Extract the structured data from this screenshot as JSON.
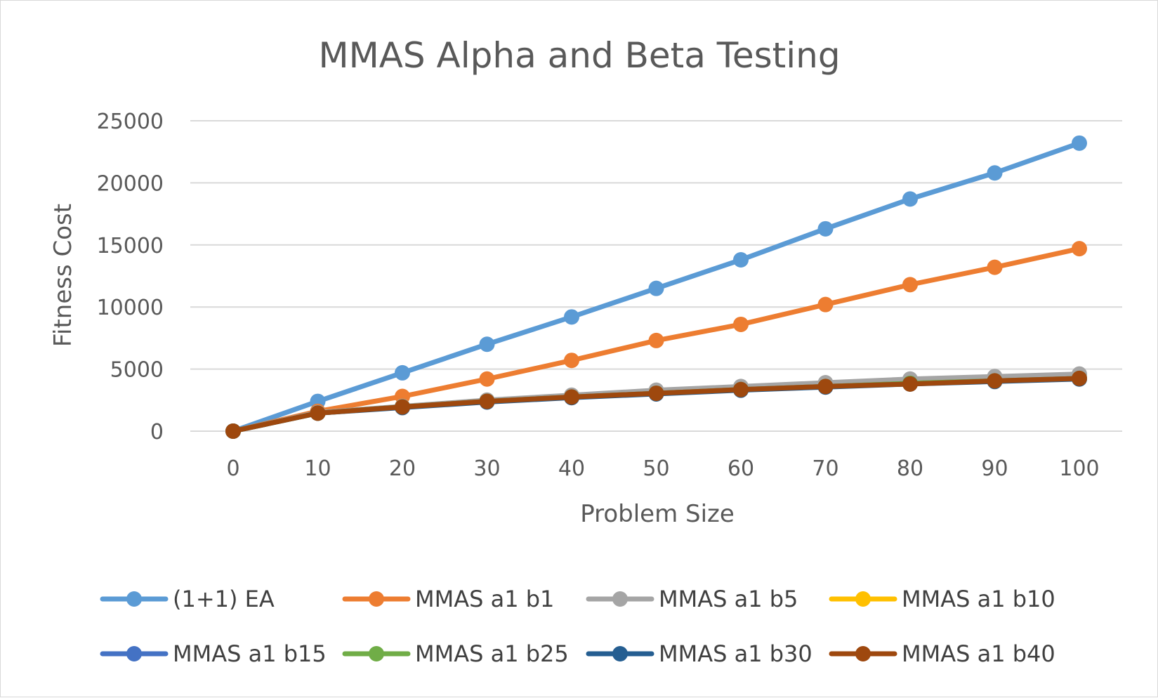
{
  "chart_data": {
    "type": "line",
    "title": "MMAS Alpha and Beta Testing",
    "xlabel": "Problem Size",
    "ylabel": "Fitness Cost",
    "x": [
      0,
      10,
      20,
      30,
      40,
      50,
      60,
      70,
      80,
      90,
      100
    ],
    "x_tick_labels": [
      "0",
      "10",
      "20",
      "30",
      "40",
      "50",
      "60",
      "70",
      "80",
      "90",
      "100"
    ],
    "y_tick_labels": [
      "0",
      "5000",
      "10000",
      "15000",
      "20000",
      "25000"
    ],
    "y_ticks": [
      0,
      5000,
      10000,
      15000,
      20000,
      25000
    ],
    "xlim": [
      0,
      100
    ],
    "ylim": [
      0,
      25000
    ],
    "grid": "horizontal",
    "legend_position": "bottom",
    "series": [
      {
        "name": "(1+1) EA",
        "color": "#5b9bd5",
        "values": [
          0,
          2400,
          4700,
          7000,
          9200,
          11500,
          13800,
          16300,
          18700,
          20800,
          23200
        ]
      },
      {
        "name": "MMAS a1 b1",
        "color": "#ed7d31",
        "values": [
          0,
          1600,
          2800,
          4200,
          5700,
          7300,
          8600,
          10200,
          11800,
          13200,
          14700
        ]
      },
      {
        "name": "MMAS a1 b5",
        "color": "#a5a5a5",
        "values": [
          0,
          1500,
          2000,
          2500,
          2900,
          3300,
          3600,
          3900,
          4200,
          4400,
          4600
        ]
      },
      {
        "name": "MMAS a1 b10",
        "color": "#ffc000",
        "values": [
          0,
          1450,
          1950,
          2400,
          2750,
          3050,
          3350,
          3600,
          3850,
          4050,
          4250
        ]
      },
      {
        "name": "MMAS a1 b15",
        "color": "#4472c4",
        "values": [
          0,
          1450,
          1950,
          2400,
          2750,
          3050,
          3350,
          3600,
          3850,
          4050,
          4250
        ]
      },
      {
        "name": "MMAS a1 b25",
        "color": "#70ad47",
        "values": [
          0,
          1450,
          1950,
          2400,
          2750,
          3050,
          3350,
          3600,
          3850,
          4050,
          4250
        ]
      },
      {
        "name": "MMAS a1 b30",
        "color": "#255e91",
        "values": [
          0,
          1450,
          1900,
          2350,
          2700,
          3000,
          3300,
          3550,
          3800,
          4000,
          4200
        ]
      },
      {
        "name": "MMAS a1 b40",
        "color": "#9e480e",
        "values": [
          0,
          1450,
          1950,
          2400,
          2750,
          3050,
          3350,
          3600,
          3800,
          4050,
          4250
        ]
      }
    ]
  }
}
